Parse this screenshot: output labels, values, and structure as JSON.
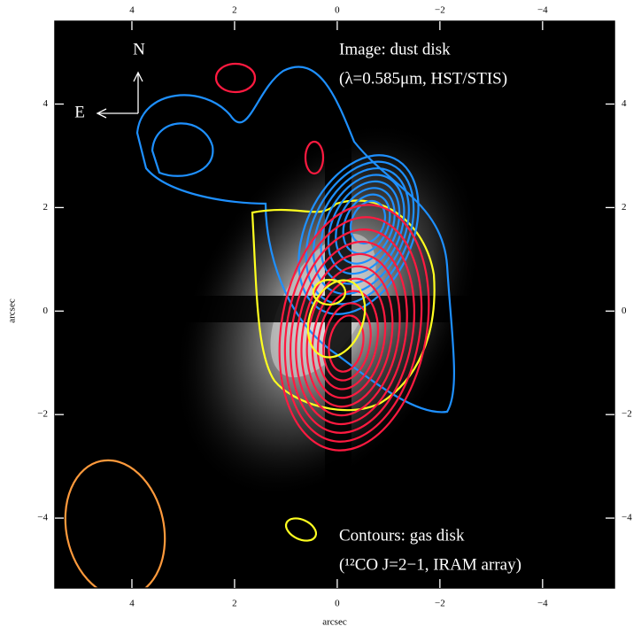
{
  "chart_data": {
    "type": "image",
    "xlabel": "arcsec",
    "ylabel": "arcsec",
    "xlim": [
      5.5,
      -5.4
    ],
    "ylim": [
      -5.35,
      5.6
    ],
    "xticks": [
      4,
      2,
      0,
      {
        "value": -2,
        "label": "−2"
      },
      {
        "value": -4,
        "label": "−4"
      }
    ],
    "yticks": [
      {
        "value": -4,
        "label": "−4"
      },
      {
        "value": -2,
        "label": "−2"
      },
      0,
      2,
      4
    ],
    "compass": {
      "north": "N",
      "east": "E"
    },
    "annotations": [
      "Image: dust disk",
      "(λ=0.585μm, HST/STIS)",
      "Contours: gas disk",
      "(¹²CO J=2−1, IRAM array)"
    ]
  }
}
